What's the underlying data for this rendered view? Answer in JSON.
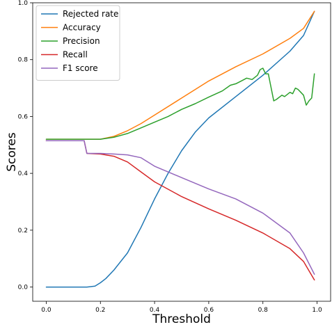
{
  "chart_data": {
    "type": "line",
    "title": "",
    "xlabel": "Threshold",
    "ylabel": "Scores",
    "xlim": [
      -0.05,
      1.05
    ],
    "ylim": [
      -0.05,
      1.0
    ],
    "xticks": [
      0.0,
      0.2,
      0.4,
      0.6,
      0.8,
      1.0
    ],
    "xtick_labels": [
      "0.0",
      "0.2",
      "0.4",
      "0.6",
      "0.8",
      "1.0"
    ],
    "yticks": [
      0.0,
      0.2,
      0.4,
      0.6,
      0.8,
      1.0
    ],
    "ytick_labels": [
      "0.0",
      "0.2",
      "0.4",
      "0.6",
      "0.8",
      "1.0"
    ],
    "grid": false,
    "legend_position": "top-left",
    "series": [
      {
        "name": "Rejected rate",
        "color": "#1f77b4",
        "x": [
          0.0,
          0.1,
          0.15,
          0.18,
          0.2,
          0.22,
          0.25,
          0.3,
          0.35,
          0.4,
          0.45,
          0.5,
          0.55,
          0.6,
          0.7,
          0.8,
          0.9,
          0.95,
          0.99
        ],
        "y": [
          0.0,
          0.0,
          0.0,
          0.003,
          0.015,
          0.03,
          0.06,
          0.12,
          0.21,
          0.31,
          0.4,
          0.48,
          0.545,
          0.595,
          0.67,
          0.745,
          0.83,
          0.885,
          0.97
        ]
      },
      {
        "name": "Accuracy",
        "color": "#ff7f0e",
        "x": [
          0.0,
          0.1,
          0.15,
          0.2,
          0.25,
          0.3,
          0.35,
          0.4,
          0.5,
          0.6,
          0.7,
          0.8,
          0.9,
          0.95,
          0.99
        ],
        "y": [
          0.52,
          0.52,
          0.52,
          0.52,
          0.53,
          0.55,
          0.575,
          0.605,
          0.665,
          0.725,
          0.775,
          0.82,
          0.875,
          0.91,
          0.97
        ]
      },
      {
        "name": "Precision",
        "color": "#2ca02c",
        "x": [
          0.0,
          0.1,
          0.15,
          0.2,
          0.25,
          0.3,
          0.35,
          0.4,
          0.45,
          0.5,
          0.55,
          0.6,
          0.65,
          0.68,
          0.7,
          0.72,
          0.74,
          0.76,
          0.78,
          0.79,
          0.8,
          0.81,
          0.82,
          0.84,
          0.85,
          0.87,
          0.88,
          0.9,
          0.91,
          0.92,
          0.93,
          0.94,
          0.95,
          0.96,
          0.97,
          0.98,
          0.99
        ],
        "y": [
          0.52,
          0.52,
          0.52,
          0.52,
          0.527,
          0.54,
          0.56,
          0.58,
          0.6,
          0.625,
          0.645,
          0.668,
          0.69,
          0.71,
          0.715,
          0.725,
          0.735,
          0.73,
          0.745,
          0.765,
          0.77,
          0.75,
          0.75,
          0.655,
          0.66,
          0.675,
          0.67,
          0.685,
          0.68,
          0.7,
          0.695,
          0.685,
          0.675,
          0.64,
          0.655,
          0.665,
          0.75
        ]
      },
      {
        "name": "Recall",
        "color": "#d62728",
        "x": [
          0.0,
          0.1,
          0.14,
          0.15,
          0.2,
          0.25,
          0.3,
          0.35,
          0.4,
          0.5,
          0.6,
          0.7,
          0.8,
          0.9,
          0.95,
          0.99
        ],
        "y": [
          0.515,
          0.515,
          0.515,
          0.47,
          0.468,
          0.46,
          0.44,
          0.405,
          0.37,
          0.318,
          0.275,
          0.235,
          0.19,
          0.135,
          0.09,
          0.025
        ]
      },
      {
        "name": "F1 score",
        "color": "#9467bd",
        "x": [
          0.0,
          0.1,
          0.14,
          0.15,
          0.2,
          0.25,
          0.3,
          0.35,
          0.4,
          0.5,
          0.6,
          0.7,
          0.8,
          0.9,
          0.95,
          0.99
        ],
        "y": [
          0.515,
          0.515,
          0.515,
          0.47,
          0.47,
          0.468,
          0.465,
          0.455,
          0.425,
          0.385,
          0.345,
          0.31,
          0.26,
          0.19,
          0.12,
          0.045
        ]
      }
    ]
  }
}
